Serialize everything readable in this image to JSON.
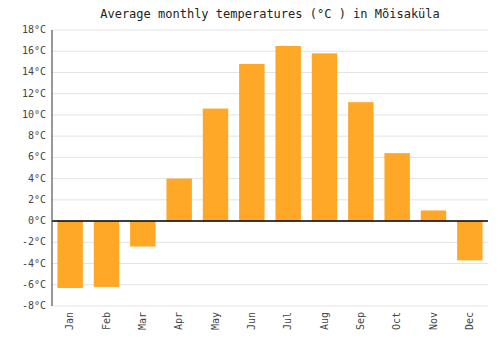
{
  "chart_data": {
    "type": "bar",
    "title": "Average monthly temperatures (°C ) in Mõisaküla",
    "categories": [
      "Jan",
      "Feb",
      "Mar",
      "Apr",
      "May",
      "Jun",
      "Jul",
      "Aug",
      "Sep",
      "Oct",
      "Nov",
      "Dec"
    ],
    "values": [
      -6.3,
      -6.2,
      -2.4,
      4.0,
      10.6,
      14.8,
      16.5,
      15.8,
      11.2,
      6.4,
      1.0,
      -3.7
    ],
    "color": "#FFA726",
    "ylim": [
      -8,
      18
    ],
    "yticks": [
      {
        "value": -8,
        "label": "-8°C"
      },
      {
        "value": -6,
        "label": "-6°C"
      },
      {
        "value": -4,
        "label": "-4°C"
      },
      {
        "value": -2,
        "label": "-2°C"
      },
      {
        "value": 0,
        "label": "0°C"
      },
      {
        "value": 2,
        "label": "2°C"
      },
      {
        "value": 4,
        "label": "4°C"
      },
      {
        "value": 6,
        "label": "6°C"
      },
      {
        "value": 8,
        "label": "8°C"
      },
      {
        "value": 10,
        "label": "10°C"
      },
      {
        "value": 12,
        "label": "12°C"
      },
      {
        "value": 14,
        "label": "14°C"
      },
      {
        "value": 16,
        "label": "16°C"
      },
      {
        "value": 18,
        "label": "18°C"
      }
    ],
    "grid": true
  }
}
